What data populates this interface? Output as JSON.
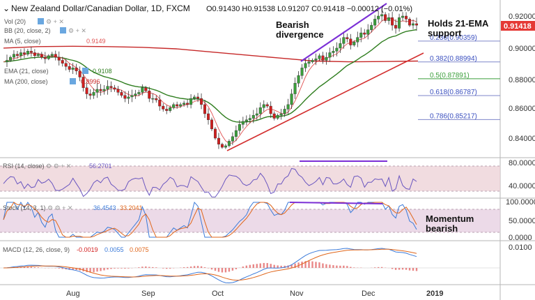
{
  "header": {
    "title": "New Zealand Dollar/Canadian Dollar, 1D, FXCM",
    "ohlc": "O0.91430 H0.91538 L0.91207 C0.91418 −0.00012 (−0.01%)"
  },
  "legend": {
    "vol": "Vol (20)",
    "bb": "BB (20, close, 2)",
    "ma5": "MA (5, close)",
    "ma5_val": "0.9149",
    "ema21": "EMA (21, close)",
    "ema21_val": "0.9108",
    "ma200": "MA (200, close)",
    "ma200_val": "0.8996"
  },
  "annotations": {
    "bearish_div_1": "Bearish",
    "bearish_div_2": "divergence",
    "holds_1": "Holds 21-EMA",
    "holds_2": "support",
    "momentum_1": "Momentum",
    "momentum_2": "bearish"
  },
  "fib": [
    "0.236(0.90359)",
    "0.382(0.88994)",
    "0.5(0.87891)",
    "0.618(0.86787)",
    "0.786(0.85217)"
  ],
  "price_badge": "0.91418",
  "price_axis": [
    "0.92000",
    "0.90000",
    "0.88000",
    "0.86000",
    "0.84000"
  ],
  "rsi": {
    "label": "RSI (14, close)",
    "value": "56.2701",
    "axis": [
      "80.0000",
      "40.0000"
    ]
  },
  "stoch": {
    "label": "Stoch (14, 3, 1)",
    "k": "36.4543",
    "d": "33.2041",
    "axis": [
      "100.0000",
      "50.0000",
      "0.0000"
    ]
  },
  "macd": {
    "label": "MACD (12, 26, close, 9)",
    "hist": "-0.0019",
    "macd": "0.0055",
    "signal": "0.0075",
    "axis": [
      "0.0100"
    ]
  },
  "time_axis": [
    "Aug",
    "Sep",
    "Oct",
    "Nov",
    "Dec",
    "2019"
  ],
  "colors": {
    "bull": "#3a9e3a",
    "bear": "#d21e1e",
    "ema21": "#2e7d1e",
    "ma200": "#c62828",
    "ma5": "#e05050",
    "trendline": "#d32f2f",
    "divergence": "#7b2fd6",
    "fib": "#3a4fbf",
    "rsi_band": "#ecd0d6",
    "rsi_line": "#6a56c0",
    "stoch_k": "#3a7ad9",
    "stoch_d": "#e0661a",
    "badge": "#e53935"
  },
  "chart_data": {
    "type": "candlestick",
    "symbol": "NZDCAD",
    "timeframe": "1D",
    "ylim": [
      0.83,
      0.925
    ],
    "x_ticks": [
      "Aug",
      "Sep",
      "Oct",
      "Nov",
      "Dec",
      "2019"
    ],
    "price_path": [
      0.89,
      0.891,
      0.893,
      0.895,
      0.894,
      0.896,
      0.895,
      0.897,
      0.896,
      0.894,
      0.895,
      0.893,
      0.892,
      0.894,
      0.895,
      0.893,
      0.891,
      0.889,
      0.887,
      0.885,
      0.886,
      0.884,
      0.88,
      0.873,
      0.869,
      0.868,
      0.87,
      0.872,
      0.871,
      0.872,
      0.874,
      0.873,
      0.872,
      0.87,
      0.868,
      0.866,
      0.867,
      0.868,
      0.869,
      0.87,
      0.873,
      0.871,
      0.866,
      0.866,
      0.865,
      0.861,
      0.859,
      0.858,
      0.86,
      0.862,
      0.861,
      0.862,
      0.863,
      0.862,
      0.866,
      0.867,
      0.866,
      0.862,
      0.856,
      0.852,
      0.846,
      0.84,
      0.836,
      0.834,
      0.835,
      0.838,
      0.841,
      0.845,
      0.849,
      0.851,
      0.852,
      0.853,
      0.855,
      0.856,
      0.86,
      0.862,
      0.861,
      0.856,
      0.853,
      0.855,
      0.856,
      0.859,
      0.862,
      0.869,
      0.876,
      0.881,
      0.886,
      0.889,
      0.89,
      0.891,
      0.892,
      0.894,
      0.891,
      0.893,
      0.896,
      0.897,
      0.899,
      0.902,
      0.906,
      0.905,
      0.901,
      0.903,
      0.906,
      0.909,
      0.908,
      0.911,
      0.914,
      0.918,
      0.92,
      0.921,
      0.917,
      0.919,
      0.914,
      0.912,
      0.919,
      0.92,
      0.918,
      0.914,
      0.915,
      0.914
    ],
    "ma200_path": [
      0.899,
      0.9,
      0.9002,
      0.9,
      0.8995,
      0.8985,
      0.8965,
      0.8945,
      0.8925,
      0.8905,
      0.89,
      0.8902,
      0.8905
    ],
    "fib_levels": [
      {
        "ratio": 0.236,
        "price": 0.90359
      },
      {
        "ratio": 0.382,
        "price": 0.88994
      },
      {
        "ratio": 0.5,
        "price": 0.87891
      },
      {
        "ratio": 0.618,
        "price": 0.86787
      },
      {
        "ratio": 0.786,
        "price": 0.85217
      }
    ],
    "last_close": 0.91418,
    "indicators": {
      "ema21": 0.9108,
      "ma5": 0.9149,
      "ma200": 0.8996,
      "rsi": 56.2701,
      "stoch_k": 36.4543,
      "stoch_d": 33.2041,
      "macd_hist": -0.0019,
      "macd": 0.0055,
      "macd_signal": 0.0075
    }
  }
}
